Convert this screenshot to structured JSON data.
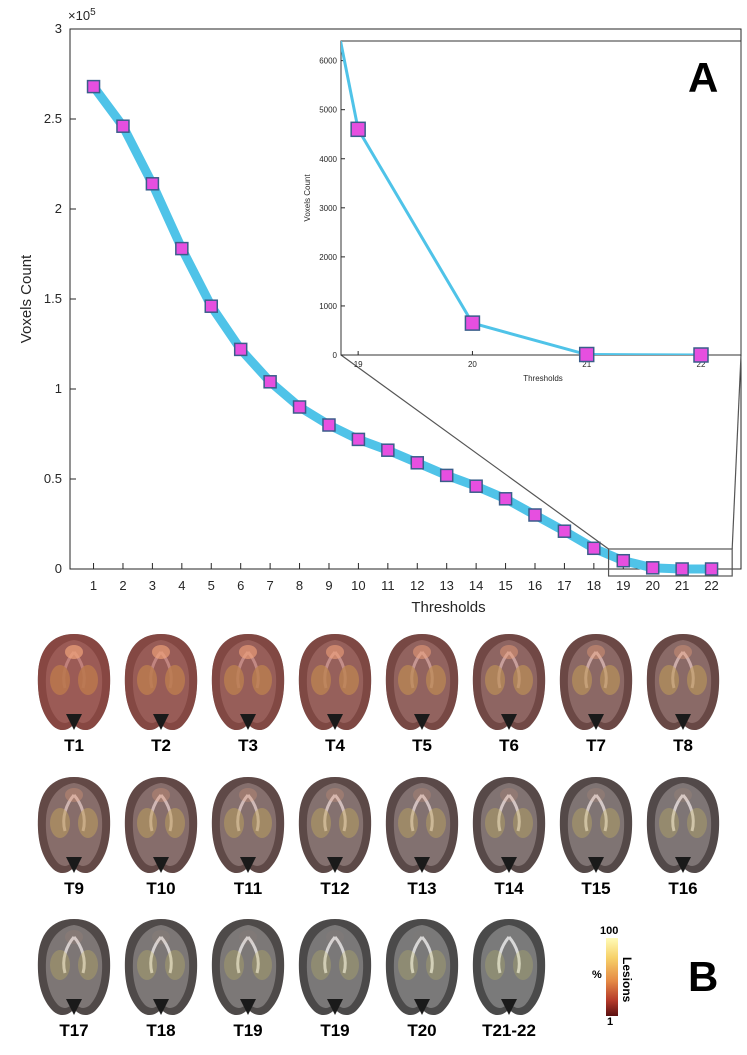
{
  "chart_data": [
    {
      "type": "line",
      "x": [
        1,
        2,
        3,
        4,
        5,
        6,
        7,
        8,
        9,
        10,
        11,
        12,
        13,
        14,
        15,
        16,
        17,
        18,
        19,
        20,
        21,
        22
      ],
      "x_tick_labels": [
        "1",
        "2",
        "3",
        "4",
        "5",
        "6",
        "7",
        "8",
        "9",
        "10",
        "11",
        "12",
        "13",
        "14",
        "15",
        "16",
        "17",
        "18",
        "19",
        "20",
        "21",
        "22"
      ],
      "series": [
        {
          "values": [
            268000,
            246000,
            214000,
            178000,
            146000,
            122000,
            104000,
            90000,
            80000,
            72000,
            66000,
            59000,
            52000,
            46000,
            39000,
            30000,
            21000,
            11500,
            4600,
            650,
            10,
            0
          ]
        }
      ],
      "xlabel": "Thresholds",
      "ylabel": "Voxels Count",
      "ylim": [
        0,
        300000
      ],
      "y_ticks": [
        0,
        50000,
        100000,
        150000,
        200000,
        250000,
        300000
      ],
      "y_tick_labels": [
        "0",
        "0.5",
        "1",
        "1.5",
        "2",
        "2.5",
        "3"
      ],
      "y_exponent_label": "×10",
      "y_exponent_power": "5",
      "panel_label": "A",
      "line_color": "#4fc3e8",
      "marker_color": "#e64fe0",
      "grid": false
    },
    {
      "type": "line",
      "x": [
        19,
        20,
        21,
        22
      ],
      "x_tick_labels": [
        "19",
        "20",
        "21",
        "22"
      ],
      "series": [
        {
          "values": [
            4600,
            650,
            10,
            0
          ]
        }
      ],
      "xlabel": "Thresholds",
      "ylabel": "Voxels Count",
      "ylim": [
        0,
        6400
      ],
      "y_ticks": [
        0,
        1000,
        2000,
        3000,
        4000,
        5000,
        6000
      ],
      "y_tick_labels": [
        "0",
        "1000",
        "2000",
        "3000",
        "4000",
        "5000",
        "6000"
      ],
      "line_color": "#4fc3e8",
      "marker_color": "#e64fe0",
      "grid": false
    }
  ],
  "panel_b": {
    "letter": "B",
    "thumbnails": [
      {
        "label": "T1",
        "level": 1.0
      },
      {
        "label": "T2",
        "level": 0.95
      },
      {
        "label": "T3",
        "level": 0.9
      },
      {
        "label": "T4",
        "level": 0.85
      },
      {
        "label": "T5",
        "level": 0.75
      },
      {
        "label": "T6",
        "level": 0.65
      },
      {
        "label": "T7",
        "level": 0.55
      },
      {
        "label": "T8",
        "level": 0.5
      },
      {
        "label": "T9",
        "level": 0.42
      },
      {
        "label": "T10",
        "level": 0.38
      },
      {
        "label": "T11",
        "level": 0.35
      },
      {
        "label": "T12",
        "level": 0.3
      },
      {
        "label": "T13",
        "level": 0.26
      },
      {
        "label": "T14",
        "level": 0.22
      },
      {
        "label": "T15",
        "level": 0.18
      },
      {
        "label": "T16",
        "level": 0.14
      },
      {
        "label": "T17",
        "level": 0.11
      },
      {
        "label": "T18",
        "level": 0.08
      },
      {
        "label": "T19",
        "level": 0.06
      },
      {
        "label": "T19",
        "level": 0.04
      },
      {
        "label": "T20",
        "level": 0.01
      },
      {
        "label": "T21-22",
        "level": 0.0
      }
    ],
    "colorbar": {
      "max": "100",
      "min": "1",
      "unit": "%",
      "label": "Lesions"
    }
  }
}
